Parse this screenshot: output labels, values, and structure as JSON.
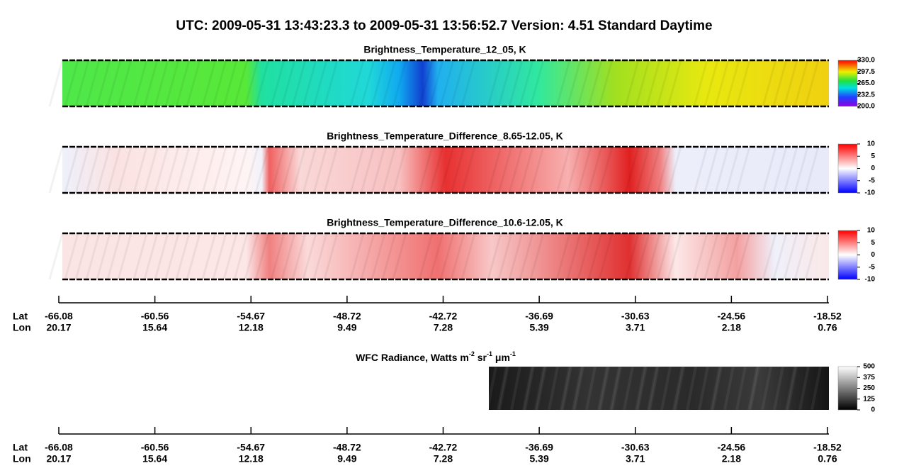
{
  "title": "UTC:  2009-05-31   13:43:23.3  to  2009-05-31   13:56:52.7    Version: 4.51  Standard Daytime",
  "panels": [
    {
      "title": "Brightness_Temperature_12_05, K",
      "colorbar": {
        "lim": [
          200,
          330
        ],
        "ticks": [
          {
            "value": 200,
            "label": "200.0"
          },
          {
            "value": 232.5,
            "label": "232.5"
          },
          {
            "value": 265,
            "label": "265.0"
          },
          {
            "value": 297.5,
            "label": "297.5"
          },
          {
            "value": 330,
            "label": "330.0"
          }
        ]
      }
    },
    {
      "title": "Brightness_Temperature_Difference_8.65-12.05, K",
      "colorbar": {
        "lim": [
          -10,
          10
        ],
        "ticks": [
          -10,
          -5,
          0,
          5,
          10
        ]
      }
    },
    {
      "title": "Brightness_Temperature_Difference_10.6-12.05, K",
      "colorbar": {
        "lim": [
          -10,
          10
        ],
        "ticks": [
          -10,
          -5,
          0,
          5,
          10
        ]
      }
    }
  ],
  "wfc": {
    "title": [
      "WFC Radiance, Watts m",
      "-2",
      " sr",
      "-1",
      " μm",
      "-1"
    ],
    "colorbar": {
      "lim": [
        0,
        500
      ],
      "ticks": [
        0,
        125,
        250,
        375,
        500
      ]
    }
  },
  "axis": {
    "lat_label": "Lat",
    "lon_label": "Lon",
    "lat": [
      -66.08,
      -60.56,
      -54.67,
      -48.72,
      -42.72,
      -36.69,
      -30.63,
      -24.56,
      -18.52
    ],
    "lon": [
      20.17,
      15.64,
      12.18,
      9.49,
      7.28,
      5.39,
      3.71,
      2.18,
      0.76
    ]
  }
}
